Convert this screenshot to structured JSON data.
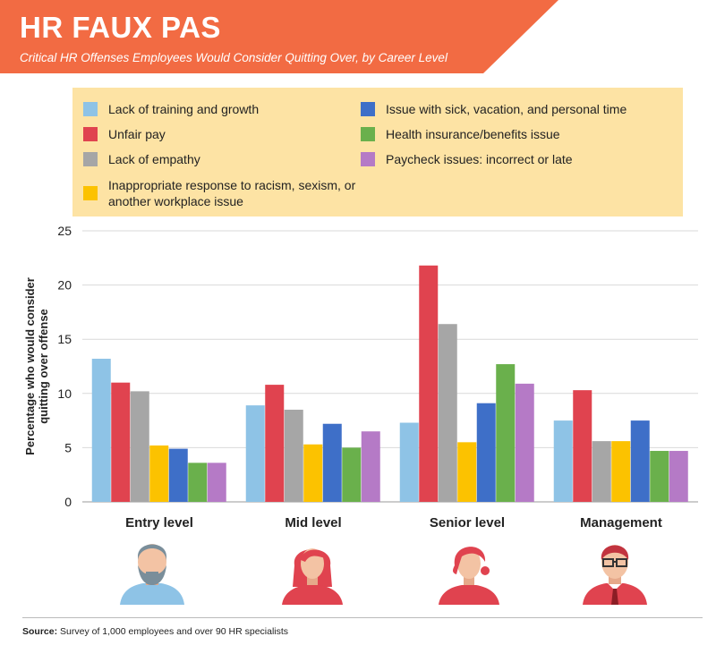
{
  "header": {
    "title": "HR FAUX PAS",
    "subtitle": "Critical HR Offenses Employees Would Consider Quitting Over, by Career Level",
    "banner_color": "#f26b43"
  },
  "legend": {
    "items": [
      {
        "label": "Lack of training and growth",
        "color": "#8ec3e6"
      },
      {
        "label": "Unfair pay",
        "color": "#e0434f"
      },
      {
        "label": "Lack of empathy",
        "color": "#a6a6a6"
      },
      {
        "label": "Inappropriate response to racism, sexism, or another workplace issue",
        "color": "#fcc200"
      },
      {
        "label": "Issue with sick, vacation, and personal time",
        "color": "#3e6fc8"
      },
      {
        "label": "Health insurance/benefits issue",
        "color": "#6ab04c"
      },
      {
        "label": "Paycheck issues: incorrect or late",
        "color": "#b57ac6"
      }
    ]
  },
  "chart_data": {
    "type": "bar",
    "title": "Critical HR Offenses Employees Would Consider Quitting Over, by Career Level",
    "ylabel": "Percentage who would consider quitting over offense",
    "xlabel": "",
    "ylim": [
      0,
      25
    ],
    "yticks": [
      0,
      5,
      10,
      15,
      20,
      25
    ],
    "grid": true,
    "categories": [
      "Entry level",
      "Mid level",
      "Senior level",
      "Management"
    ],
    "series": [
      {
        "name": "Lack of training and growth",
        "color": "#8ec3e6",
        "values": [
          13.2,
          8.9,
          7.3,
          7.5
        ]
      },
      {
        "name": "Unfair pay",
        "color": "#e0434f",
        "values": [
          11.0,
          10.8,
          21.8,
          10.3
        ]
      },
      {
        "name": "Lack of empathy",
        "color": "#a6a6a6",
        "values": [
          10.2,
          8.5,
          16.4,
          5.6
        ]
      },
      {
        "name": "Inappropriate response to racism, sexism, or another workplace issue",
        "color": "#fcc200",
        "values": [
          5.2,
          5.3,
          5.5,
          5.6
        ]
      },
      {
        "name": "Issue with sick, vacation, and personal time",
        "color": "#3e6fc8",
        "values": [
          4.9,
          7.2,
          9.1,
          7.5
        ]
      },
      {
        "name": "Health insurance/benefits issue",
        "color": "#6ab04c",
        "values": [
          3.6,
          5.0,
          12.7,
          4.7
        ]
      },
      {
        "name": "Paycheck issues: incorrect or late",
        "color": "#b57ac6",
        "values": [
          3.6,
          6.5,
          10.9,
          4.7
        ]
      }
    ]
  },
  "icons": [
    "bearded-man-icon",
    "woman-long-hair-icon",
    "woman-short-hair-icon",
    "man-glasses-tie-icon"
  ],
  "footer": {
    "source_label": "Source:",
    "source_text": " Survey of 1,000 employees and over 90 HR specialists"
  }
}
